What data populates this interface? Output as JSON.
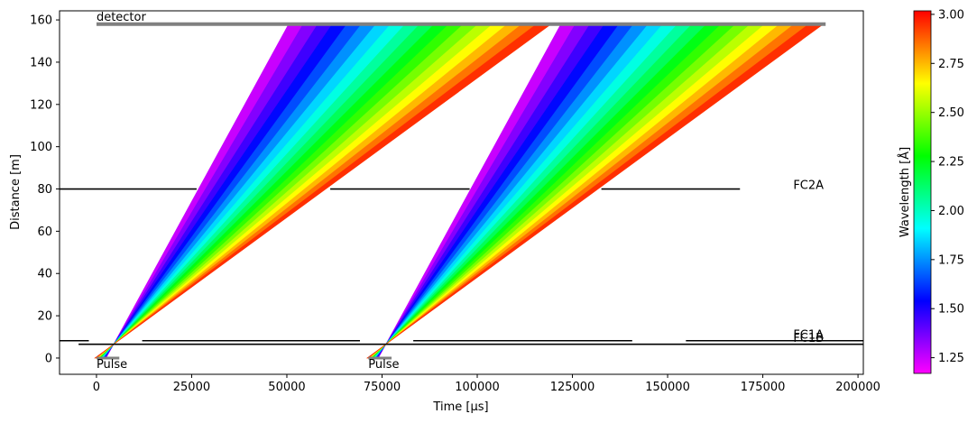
{
  "chart_data": {
    "type": "time-distance",
    "xlabel": "Time [µs]",
    "ylabel": "Distance [m]",
    "xlim": [
      -9700,
      201400
    ],
    "ylim": [
      -7.7,
      164.3
    ],
    "xticks": [
      0,
      25000,
      50000,
      75000,
      100000,
      125000,
      150000,
      175000,
      200000
    ],
    "yticks": [
      0,
      20,
      40,
      60,
      80,
      100,
      120,
      140,
      160
    ],
    "wavelengths": [
      1.2,
      1.3,
      1.4,
      1.5,
      1.6,
      1.7,
      1.8,
      1.9,
      2.0,
      2.1,
      2.2,
      2.3,
      2.4,
      2.5,
      2.6,
      2.7,
      2.8,
      2.9,
      3.0
    ],
    "frames": [
      {
        "pulse_label": "Pulse",
        "pulse": [
          0,
          6000
        ],
        "t_start": [
          2528,
          2364,
          2200,
          2036,
          1871,
          1707,
          1543,
          1378,
          1214,
          1050,
          885,
          721,
          557,
          393,
          228,
          64,
          -100,
          -265,
          -429
        ],
        "t_detector": [
          50455,
          54285,
          58115,
          61944,
          65773,
          69603,
          73433,
          77262,
          81092,
          84922,
          88751,
          92581,
          96410,
          100240,
          104069,
          107899,
          111729,
          115558,
          119388
        ]
      },
      {
        "pulse_label": "Pulse",
        "pulse": [
          71400,
          77500
        ],
        "t_start": [
          74028,
          73864,
          73700,
          73536,
          73371,
          73207,
          73043,
          72878,
          72714,
          72550,
          72385,
          72221,
          72057,
          71893,
          71728,
          71564,
          71400,
          71235,
          71071
        ],
        "t_detector": [
          121955,
          125785,
          129615,
          133444,
          137273,
          141103,
          144933,
          148762,
          152592,
          156422,
          160251,
          164081,
          167910,
          171740,
          175569,
          179399,
          183229,
          187058,
          190888
        ]
      }
    ],
    "choppers": [
      {
        "label": "FC2A",
        "distance": 80,
        "label_at": [
          183000,
          82
        ],
        "closed": [
          [
            -9700,
            26300
          ],
          [
            61400,
            98000
          ],
          [
            132600,
            169000
          ]
        ]
      },
      {
        "label": "FC1A",
        "distance": 8.2,
        "label_at": [
          183000,
          11
        ],
        "closed": [
          [
            -9700,
            -2000
          ],
          [
            12000,
            69200
          ],
          [
            83200,
            140700
          ],
          [
            154800,
            201400
          ]
        ]
      },
      {
        "label": "FC1B",
        "distance": 6.5,
        "label_at": [
          183000,
          9.5
        ],
        "closed": [
          [
            -4700,
            201400
          ]
        ]
      }
    ],
    "detector": {
      "label": "detector",
      "distance": 158,
      "span": [
        0,
        191500
      ]
    },
    "colorbar": {
      "label": "Wavelength [Å]",
      "lim": [
        1.17,
        3.018
      ],
      "ticks": [
        1.25,
        {
          "value": 1.5,
          "label": "1.50"
        },
        1.75,
        {
          "value": 2.0,
          "label": "2.00"
        },
        2.25,
        {
          "value": 2.5,
          "label": "2.50"
        },
        2.75,
        {
          "value": 3.0,
          "label": "3.00"
        }
      ]
    }
  }
}
